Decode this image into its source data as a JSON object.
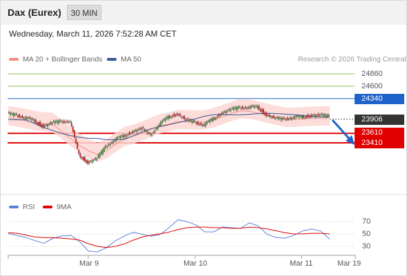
{
  "header": {
    "title": "Dax (Eurex)",
    "timeframe": "30 MIN",
    "datetime": "Wednesday, March 11, 2026 7:52:28 AM CET"
  },
  "legend": {
    "ma20": "MA 20 + Bollinger Bands",
    "ma50": "MA 50",
    "ma20_color": "#f28b82",
    "ma50_color": "#2f5597",
    "research": "Research © 2026 Trading Central"
  },
  "levels": {
    "r3": "24860",
    "r2": "24600",
    "r1": "24340",
    "last": "23906",
    "s1": "23610",
    "s2": "23410",
    "green_color": "#8bc34a",
    "blue_color": "#1e63c9",
    "red_color": "#e00000",
    "last_color": "#333333"
  },
  "xaxis": {
    "labels": [
      "Mar 9",
      "Mar 10",
      "Mar 11",
      "Mar 19"
    ]
  },
  "rsi": {
    "label": "RSI",
    "ma_label": "9MA",
    "rsi_color": "#5b7fdb",
    "ma_color": "#e00000",
    "levels": [
      "70",
      "50",
      "30"
    ]
  },
  "chart_data": [
    {
      "type": "line",
      "title": "",
      "xlabel": "",
      "ylabel": "",
      "x": [
        "Mar 9",
        "Mar 10",
        "Mar 11"
      ],
      "ylim": [
        23000,
        25100
      ],
      "series": [
        {
          "name": "MA 20 + Bollinger Bands",
          "values": [
            23580,
            23700,
            23950
          ]
        },
        {
          "name": "MA 50",
          "values": [
            23750,
            23590,
            23870
          ]
        }
      ],
      "price_path": [
        24020,
        23980,
        23940,
        23880,
        23760,
        23830,
        23850,
        23870,
        23160,
        23000,
        23080,
        23320,
        23480,
        23560,
        23650,
        23710,
        23560,
        23810,
        23960,
        24020,
        23890,
        23830,
        23790,
        23920,
        24040,
        24110,
        24140,
        24160,
        24170,
        24000,
        23920,
        23900,
        23950,
        23960,
        23990,
        23990,
        23960
      ],
      "levels": [
        24860,
        24600,
        24340,
        23906,
        23610,
        23410
      ]
    },
    {
      "type": "line",
      "title": "",
      "series": [
        {
          "name": "RSI",
          "values": [
            48,
            50,
            46,
            40,
            35,
            42,
            45,
            45,
            40,
            24,
            22,
            28,
            38,
            45,
            50,
            52,
            48,
            50,
            60,
            72,
            68,
            62,
            56,
            55,
            62,
            60,
            58,
            66,
            60,
            52,
            46,
            44,
            48,
            54,
            56,
            52,
            44
          ]
        },
        {
          "name": "9MA",
          "values": [
            52,
            51,
            48,
            45,
            44,
            44,
            43,
            42,
            40,
            34,
            30,
            28,
            30,
            34,
            40,
            45,
            48,
            50,
            53,
            57,
            60,
            61,
            61,
            60,
            60,
            59,
            59,
            61,
            60,
            58,
            55,
            52,
            50,
            50,
            51,
            51,
            50
          ]
        }
      ],
      "levels": [
        70,
        50,
        30
      ],
      "ylim": [
        20,
        80
      ]
    }
  ]
}
